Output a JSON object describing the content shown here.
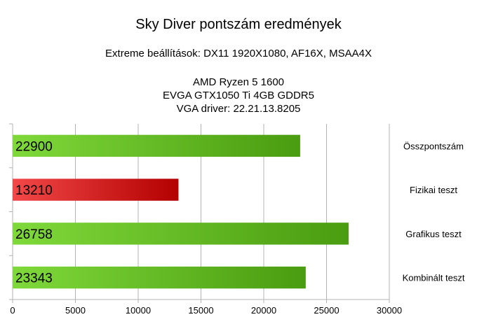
{
  "chart_data": {
    "type": "bar",
    "orientation": "horizontal",
    "title": "Sky Diver pontszám eredmények",
    "subtitle_lines": [
      "Extreme beállítások: DX11 1920X1080, AF16X, MSAA4X",
      "AMD Ryzen 5 1600",
      "EVGA GTX1050 Ti 4GB GDDR5",
      "VGA driver: 22.21.13.8205"
    ],
    "categories": [
      "Összpontszám",
      "Fizikai teszt",
      "Grafikus teszt",
      "Kombinált teszt"
    ],
    "values": [
      22900,
      13210,
      26758,
      23343
    ],
    "data_labels": [
      "22900",
      "13210",
      "26758",
      "23343"
    ],
    "bar_colors": [
      "green",
      "red",
      "green",
      "green"
    ],
    "xlim": [
      0,
      30000
    ],
    "x_ticks": [
      0,
      5000,
      10000,
      15000,
      20000,
      25000,
      30000
    ],
    "x_tick_labels": [
      "0",
      "5000",
      "10000",
      "15000",
      "20000",
      "25000",
      "30000"
    ],
    "grid": true,
    "category_labels_position": "right"
  },
  "colors": {
    "green_light": "#7fd93a",
    "green_dark": "#4a9c10",
    "red_light": "#f24848",
    "red_dark": "#b30000",
    "grid": "#b3b3b3"
  }
}
